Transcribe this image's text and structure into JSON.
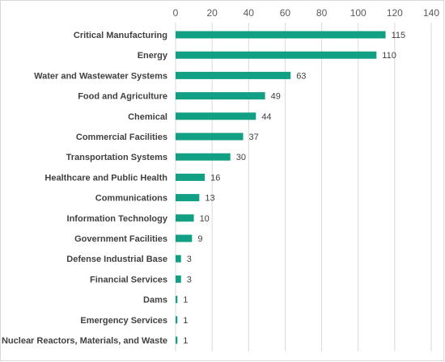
{
  "chart_data": {
    "type": "bar",
    "orientation": "horizontal",
    "title": "",
    "xlabel": "",
    "ylabel": "",
    "categories": [
      "Critical Manufacturing",
      "Energy",
      "Water and Wastewater Systems",
      "Food and Agriculture",
      "Chemical",
      "Commercial Facilities",
      "Transportation Systems",
      "Healthcare and Public Health",
      "Communications",
      "Information Technology",
      "Government Facilities",
      "Defense Industrial Base",
      "Financial Services",
      "Dams",
      "Emergency Services",
      "Nuclear Reactors, Materials, and Waste"
    ],
    "values": [
      115,
      110,
      63,
      49,
      44,
      37,
      30,
      16,
      13,
      10,
      9,
      3,
      3,
      1,
      1,
      1
    ],
    "data_labels": [
      "115",
      "110",
      "63",
      "49",
      "44",
      "37",
      "30",
      "16",
      "13",
      "10",
      "9",
      "3",
      "3",
      "1",
      "1",
      "1"
    ],
    "xlim": [
      0,
      140
    ],
    "xticks": [
      0,
      20,
      40,
      60,
      80,
      100,
      120,
      140
    ],
    "xtick_labels": [
      "0",
      "20",
      "40",
      "60",
      "80",
      "100",
      "120",
      "140"
    ],
    "x_axis_position": "top",
    "grid": true,
    "bar_color": "#12a085",
    "grid_color": "#d9d9d9"
  }
}
